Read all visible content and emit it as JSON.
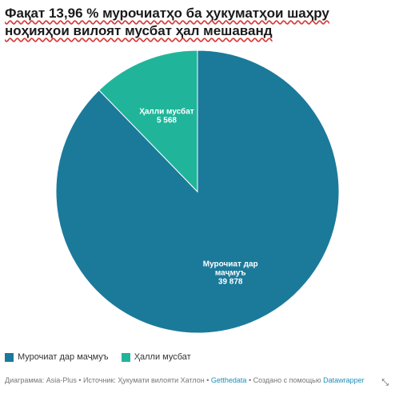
{
  "title_line1": "Фақат 13,96 % мурочиатҳо ба ҳукуматҳои шаҳру",
  "title_line2": "ноҳияҳои вилоят мусбат ҳал мешаванд",
  "chart_data": {
    "type": "pie",
    "slices": [
      {
        "name": "Мурочиат дар",
        "name2": "маҷмуъ",
        "value": 39878,
        "value_label": "39 878",
        "color": "#1b7a9a"
      },
      {
        "name": "Ҳалли мусбат",
        "name2": "",
        "value": 5568,
        "value_label": "5 568",
        "color": "#20b59a"
      }
    ],
    "legend": [
      "Мурочиат дар маҷмуъ",
      "Ҳалли мусбат"
    ],
    "legend_position": "bottom-left"
  },
  "footer": {
    "prefix": "Диаграмма: Asia-Plus • Источник: Ҳукумати вилояти Хатлон • ",
    "gettdata": "Getthedata",
    "middle": " • Создано с помощью ",
    "datawrapper": "Datawrapper"
  },
  "icons": {
    "resize": "resize-icon"
  }
}
